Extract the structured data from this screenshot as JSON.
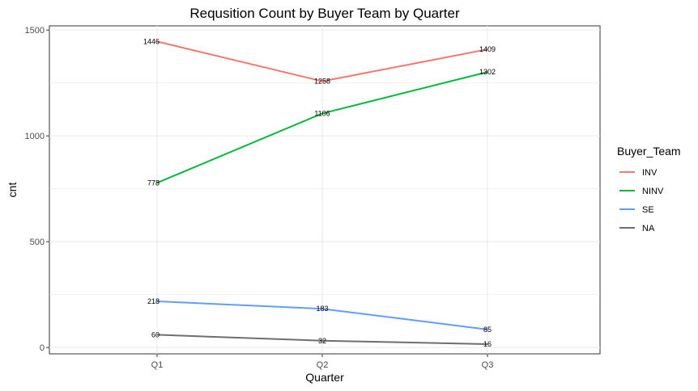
{
  "chart_data": {
    "type": "line",
    "title": "Requsition Count by Buyer Team by Quarter",
    "xlabel": "Quarter",
    "ylabel": "cnt",
    "categories": [
      "Q1",
      "Q2",
      "Q3"
    ],
    "yticks": [
      0,
      500,
      1000,
      1500
    ],
    "ylim": [
      -30,
      1520
    ],
    "grid": true,
    "legend_title": "Buyer_Team",
    "legend_position": "right",
    "series": [
      {
        "name": "INV",
        "color": "#F8766D",
        "values": [
          1446,
          1258,
          1409
        ]
      },
      {
        "name": "NINV",
        "color": "#00BA38",
        "values": [
          778,
          1106,
          1302
        ]
      },
      {
        "name": "SE",
        "color": "#619CFF",
        "values": [
          218,
          183,
          85
        ]
      },
      {
        "name": "NA",
        "color": "#6E6E6E",
        "values": [
          60,
          32,
          16
        ]
      }
    ]
  }
}
